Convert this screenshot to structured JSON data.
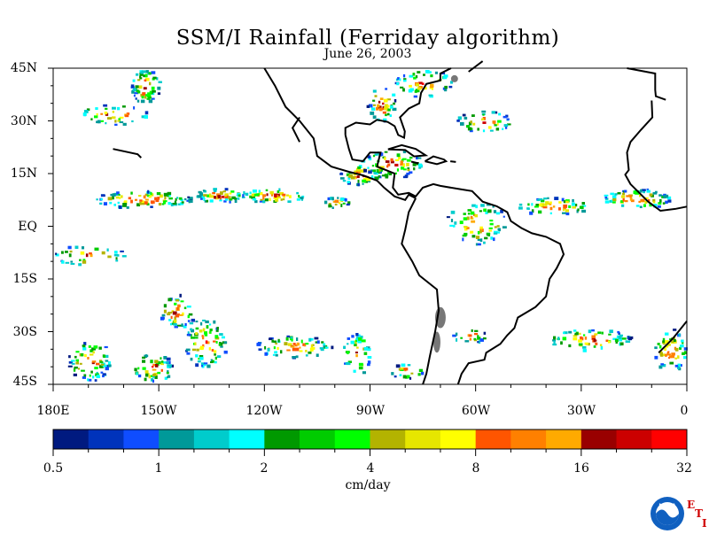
{
  "title": "SSM/I Rainfall (Ferriday algorithm)",
  "subtitle": "June 26, 2003",
  "lat_labels": [
    "45N",
    "30N",
    "15N",
    "EQ",
    "15S",
    "30S",
    "45S"
  ],
  "lon_labels": [
    "180E",
    "150W",
    "120W",
    "90W",
    "60W",
    "30W",
    "0"
  ],
  "colorbar": {
    "colors": [
      "#001a80",
      "#0033bb",
      "#0f4dff",
      "#009999",
      "#00cccc",
      "#00ffff",
      "#009900",
      "#00cc00",
      "#00ff00",
      "#b3b300",
      "#e6e600",
      "#ffff00",
      "#ff5500",
      "#ff8000",
      "#ffaa00",
      "#990000",
      "#cc0000",
      "#ff0000"
    ],
    "tick_labels": [
      "0.5",
      "1",
      "2",
      "4",
      "8",
      "16",
      "32"
    ],
    "unit": "cm/day"
  },
  "logo": {
    "text": "NOAA",
    "side_letters": [
      "E",
      "T",
      "I"
    ]
  },
  "map_data": {
    "lat_range": [
      -45,
      45
    ],
    "lon_range": [
      -180,
      0
    ],
    "rain_regions": [
      {
        "lon": -154,
        "lat": 40,
        "rx": 4,
        "ry": 5,
        "n": 60
      },
      {
        "lon": -163,
        "lat": 32,
        "rx": 10,
        "ry": 3,
        "n": 40
      },
      {
        "lon": -155,
        "lat": 8,
        "rx": 14,
        "ry": 2.5,
        "n": 90
      },
      {
        "lon": -133,
        "lat": 9,
        "rx": 7,
        "ry": 2,
        "n": 55
      },
      {
        "lon": -118,
        "lat": 9,
        "rx": 10,
        "ry": 2,
        "n": 55
      },
      {
        "lon": -100,
        "lat": 7,
        "rx": 4,
        "ry": 1.5,
        "n": 25
      },
      {
        "lon": -93,
        "lat": 15,
        "rx": 6,
        "ry": 3,
        "n": 50
      },
      {
        "lon": -84,
        "lat": 18,
        "rx": 9,
        "ry": 4,
        "n": 70
      },
      {
        "lon": -87,
        "lat": 35,
        "rx": 4,
        "ry": 5,
        "n": 40
      },
      {
        "lon": -75,
        "lat": 41,
        "rx": 8,
        "ry": 4,
        "n": 50
      },
      {
        "lon": -58,
        "lat": 30,
        "rx": 8,
        "ry": 3,
        "n": 40
      },
      {
        "lon": -60,
        "lat": 1,
        "rx": 9,
        "ry": 6,
        "n": 70
      },
      {
        "lon": -38,
        "lat": 6,
        "rx": 10,
        "ry": 2.5,
        "n": 55
      },
      {
        "lon": -15,
        "lat": 8,
        "rx": 10,
        "ry": 3,
        "n": 70
      },
      {
        "lon": -170,
        "lat": -8,
        "rx": 10,
        "ry": 3,
        "n": 35
      },
      {
        "lon": -145,
        "lat": -24,
        "rx": 5,
        "ry": 5,
        "n": 45
      },
      {
        "lon": -137,
        "lat": -33,
        "rx": 6,
        "ry": 7,
        "n": 80
      },
      {
        "lon": -170,
        "lat": -38,
        "rx": 6,
        "ry": 6,
        "n": 70
      },
      {
        "lon": -152,
        "lat": -40,
        "rx": 6,
        "ry": 4,
        "n": 50
      },
      {
        "lon": -112,
        "lat": -34,
        "rx": 11,
        "ry": 3,
        "n": 70
      },
      {
        "lon": -94,
        "lat": -36,
        "rx": 4,
        "ry": 6,
        "n": 40
      },
      {
        "lon": -80,
        "lat": -41,
        "rx": 5,
        "ry": 2,
        "n": 20
      },
      {
        "lon": -62,
        "lat": -31,
        "rx": 5,
        "ry": 2,
        "n": 20
      },
      {
        "lon": -28,
        "lat": -32,
        "rx": 12,
        "ry": 3,
        "n": 70
      },
      {
        "lon": -5,
        "lat": -35,
        "rx": 5,
        "ry": 6,
        "n": 60
      }
    ],
    "coastlines": [
      [
        [
          -120,
          45
        ],
        [
          -117,
          40
        ],
        [
          -114,
          34
        ],
        [
          -110,
          30
        ],
        [
          -106,
          25
        ],
        [
          -105,
          20
        ],
        [
          -101,
          17
        ],
        [
          -96,
          15.5
        ],
        [
          -92,
          14.5
        ],
        [
          -88,
          13
        ],
        [
          -86,
          11
        ],
        [
          -83,
          8.5
        ],
        [
          -80,
          7.5
        ],
        [
          -79,
          9
        ],
        [
          -77,
          8
        ]
      ],
      [
        [
          -77,
          8
        ],
        [
          -79,
          4
        ],
        [
          -80,
          -1
        ],
        [
          -81,
          -5
        ],
        [
          -78,
          -10
        ],
        [
          -76,
          -14
        ],
        [
          -71,
          -18
        ],
        [
          -70.5,
          -24
        ],
        [
          -71.5,
          -30
        ],
        [
          -73,
          -37
        ],
        [
          -74,
          -42
        ],
        [
          -75,
          -45
        ]
      ],
      [
        [
          -110,
          31
        ],
        [
          -112,
          28
        ],
        [
          -110,
          24
        ]
      ],
      [
        [
          -97,
          26
        ],
        [
          -96,
          22
        ],
        [
          -95,
          19
        ],
        [
          -92,
          18.5
        ],
        [
          -90,
          21
        ],
        [
          -87,
          21
        ],
        [
          -88,
          17
        ],
        [
          -85,
          15.8
        ],
        [
          -83,
          15
        ],
        [
          -83.5,
          11
        ],
        [
          -82,
          9
        ],
        [
          -79,
          9.5
        ],
        [
          -77,
          8.5
        ],
        [
          -75,
          11
        ],
        [
          -72,
          12
        ],
        [
          -70,
          11.5
        ],
        [
          -64,
          10.5
        ],
        [
          -61,
          10
        ],
        [
          -58,
          7
        ],
        [
          -54,
          5.7
        ],
        [
          -51,
          4
        ],
        [
          -50,
          1.5
        ],
        [
          -47,
          -0.5
        ],
        [
          -44,
          -2
        ],
        [
          -40,
          -3
        ],
        [
          -36,
          -5
        ],
        [
          -35,
          -8
        ],
        [
          -37,
          -12
        ],
        [
          -39,
          -15
        ],
        [
          -40,
          -20
        ],
        [
          -43,
          -23
        ],
        [
          -48,
          -26
        ],
        [
          -49,
          -29
        ],
        [
          -51,
          -31
        ],
        [
          -53,
          -33.5
        ],
        [
          -57,
          -36
        ],
        [
          -57.5,
          -38
        ],
        [
          -62,
          -39
        ],
        [
          -64,
          -42
        ],
        [
          -65,
          -45
        ]
      ],
      [
        [
          -97,
          26
        ],
        [
          -97,
          28
        ],
        [
          -94,
          29.5
        ],
        [
          -90,
          29
        ],
        [
          -88,
          30.3
        ],
        [
          -85,
          29.7
        ],
        [
          -83,
          28.5
        ],
        [
          -82,
          26
        ],
        [
          -80.3,
          25.2
        ],
        [
          -80.1,
          27
        ],
        [
          -81.5,
          31
        ],
        [
          -79,
          33.5
        ],
        [
          -76,
          35
        ],
        [
          -75.5,
          38
        ],
        [
          -74,
          40.5
        ],
        [
          -70,
          41.5
        ],
        [
          -70,
          43.5
        ],
        [
          -67,
          45
        ]
      ],
      [
        [
          -84.9,
          21.9
        ],
        [
          -81,
          23.1
        ],
        [
          -77,
          22
        ],
        [
          -74.2,
          20.2
        ],
        [
          -77.5,
          19.9
        ],
        [
          -80,
          21.7
        ],
        [
          -84.9,
          21.9
        ]
      ],
      [
        [
          -74.4,
          18.5
        ],
        [
          -72,
          19.9
        ],
        [
          -69,
          19
        ],
        [
          -68.4,
          18.5
        ],
        [
          -71,
          17.7
        ],
        [
          -74.4,
          18.5
        ]
      ],
      [
        [
          -67.2,
          18.5
        ],
        [
          -65.6,
          18.3
        ]
      ],
      [
        [
          -78.3,
          18.4
        ],
        [
          -76.2,
          17.9
        ]
      ],
      [
        [
          -62,
          44
        ],
        [
          -58,
          47
        ]
      ],
      [
        [
          -17,
          45
        ],
        [
          -9,
          43.5
        ],
        [
          -9,
          38.8
        ],
        [
          -8.8,
          37
        ],
        [
          -6,
          36
        ]
      ],
      [
        [
          -10,
          35.8
        ],
        [
          -9.8,
          31
        ],
        [
          -13,
          27.5
        ],
        [
          -16,
          24
        ],
        [
          -17,
          21
        ],
        [
          -16.5,
          16
        ],
        [
          -17.5,
          14.7
        ],
        [
          -16,
          12
        ],
        [
          -13.5,
          9.5
        ],
        [
          -11,
          7
        ],
        [
          -7.5,
          4.4
        ],
        [
          -3,
          5
        ],
        [
          0,
          5.6
        ]
      ],
      [
        [
          0,
          -27
        ],
        [
          -4,
          -32
        ],
        [
          -8,
          -36
        ]
      ],
      [
        [
          -163,
          22
        ],
        [
          -156,
          20.5
        ],
        [
          -155,
          19.5
        ]
      ]
    ],
    "dark_land": [
      {
        "lon": -70,
        "lat": -26,
        "rx": 1.5,
        "ry": 3
      },
      {
        "lon": -71,
        "lat": -33,
        "rx": 1,
        "ry": 3
      },
      {
        "lon": -66,
        "lat": 42,
        "rx": 1,
        "ry": 1
      }
    ]
  }
}
